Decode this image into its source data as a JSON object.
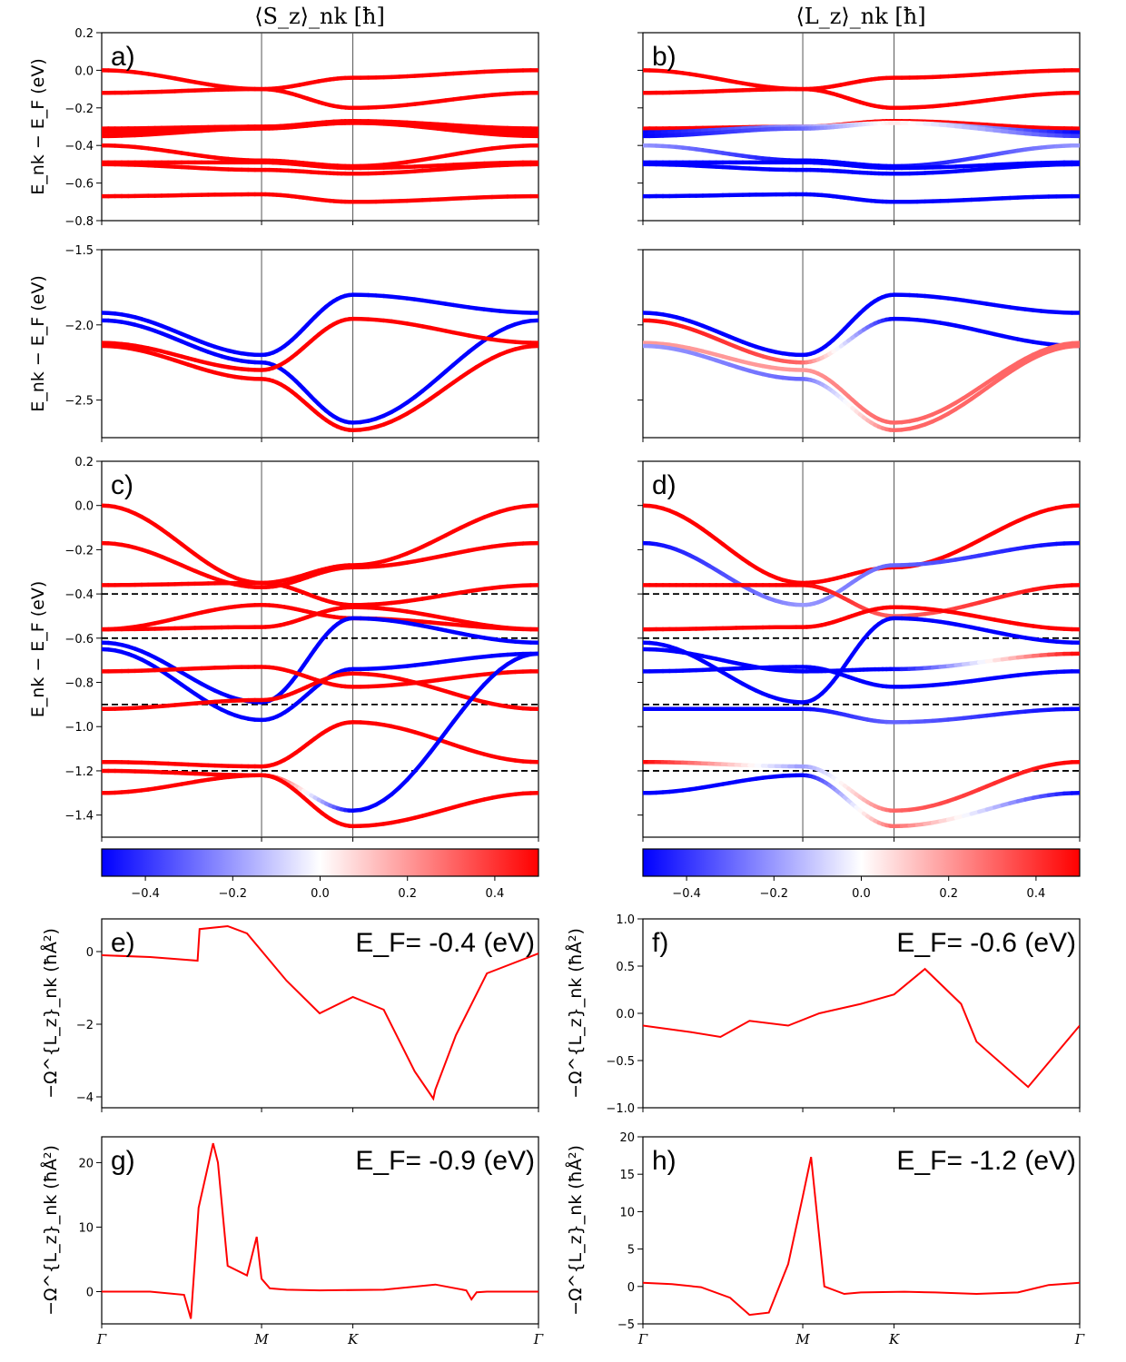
{
  "column_titles": [
    "⟨S_z⟩_nk [ħ]",
    "⟨L_z⟩_nk [ħ]"
  ],
  "band_ylabel": "E_nk − E_F (eV)",
  "berry_ylabel": "−Ω^{L_z}_nk (ħÅ²)",
  "kpath_labels": [
    "Γ",
    "M",
    "K",
    "Γ"
  ],
  "colorbar": {
    "min": -0.5,
    "max": 0.5,
    "ticks": [
      -0.4,
      -0.2,
      0.0,
      0.2,
      0.4
    ],
    "tick_labels": [
      "−0.4",
      "−0.2",
      "0.0",
      "0.2",
      "0.4"
    ],
    "low_color": "#0000ff",
    "mid_color": "#ffffff",
    "high_color": "#ff0000"
  },
  "colors": {
    "line": "#ff0000",
    "spin_up": "#ff0000",
    "spin_down": "#0000ff",
    "fermi_dash": "#000000"
  },
  "chart_data": [
    {
      "id": "a",
      "type": "line",
      "panel_label": "a)",
      "ylim": [
        -0.8,
        0.2
      ],
      "yticks": [
        -0.8,
        -0.6,
        -0.4,
        -0.2,
        0.0,
        0.2
      ],
      "ytick_labels": [
        "−0.8",
        "−0.6",
        "−0.4",
        "−0.2",
        "0.0",
        "0.2"
      ],
      "x": [
        0,
        1,
        2,
        3
      ],
      "series": [
        {
          "values": [
            0.0,
            -0.1,
            -0.04,
            0.0
          ],
          "z": [
            0.5,
            0.5,
            0.5,
            0.5
          ]
        },
        {
          "values": [
            -0.12,
            -0.1,
            -0.2,
            -0.12
          ],
          "z": [
            0.5,
            0.5,
            0.5,
            0.5
          ]
        },
        {
          "values": [
            -0.31,
            -0.3,
            -0.27,
            -0.31
          ],
          "z": [
            0.5,
            0.5,
            0.5,
            0.5
          ]
        },
        {
          "values": [
            -0.33,
            -0.3,
            -0.28,
            -0.33
          ],
          "z": [
            0.5,
            0.5,
            0.5,
            0.5
          ]
        },
        {
          "values": [
            -0.35,
            -0.31,
            -0.28,
            -0.35
          ],
          "z": [
            0.5,
            0.5,
            0.5,
            0.5
          ]
        },
        {
          "values": [
            -0.4,
            -0.48,
            -0.51,
            -0.4
          ],
          "z": [
            0.5,
            0.5,
            0.5,
            0.5
          ]
        },
        {
          "values": [
            -0.49,
            -0.49,
            -0.52,
            -0.49
          ],
          "z": [
            0.5,
            0.5,
            0.5,
            0.5
          ]
        },
        {
          "values": [
            -0.5,
            -0.53,
            -0.55,
            -0.5
          ],
          "z": [
            0.5,
            0.5,
            0.5,
            0.5
          ]
        },
        {
          "values": [
            -0.67,
            -0.66,
            -0.7,
            -0.67
          ],
          "z": [
            0.5,
            0.5,
            0.5,
            0.5
          ]
        }
      ]
    },
    {
      "id": "b",
      "type": "line",
      "panel_label": "b)",
      "ylim": [
        -0.8,
        0.2
      ],
      "yticks": [
        -0.8,
        -0.6,
        -0.4,
        -0.2,
        0.0,
        0.2
      ],
      "ytick_labels": [
        "",
        "",
        "",
        "",
        "",
        ""
      ],
      "x": [
        0,
        1,
        2,
        3
      ],
      "series": [
        {
          "values": [
            0.0,
            -0.1,
            -0.04,
            0.0
          ],
          "z": [
            0.5,
            0.5,
            0.5,
            0.5
          ]
        },
        {
          "values": [
            -0.12,
            -0.1,
            -0.2,
            -0.12
          ],
          "z": [
            0.5,
            0.5,
            0.5,
            0.5
          ]
        },
        {
          "values": [
            -0.31,
            -0.3,
            -0.27,
            -0.31
          ],
          "z": [
            0.5,
            0.5,
            0.5,
            0.5
          ]
        },
        {
          "values": [
            -0.33,
            -0.3,
            -0.28,
            -0.33
          ],
          "z": [
            -0.5,
            -0.2,
            0.05,
            -0.5
          ]
        },
        {
          "values": [
            -0.35,
            -0.31,
            -0.28,
            -0.35
          ],
          "z": [
            -0.5,
            -0.3,
            0.05,
            -0.4
          ]
        },
        {
          "values": [
            -0.4,
            -0.48,
            -0.51,
            -0.4
          ],
          "z": [
            -0.2,
            -0.5,
            -0.5,
            -0.2
          ]
        },
        {
          "values": [
            -0.49,
            -0.49,
            -0.52,
            -0.49
          ],
          "z": [
            -0.5,
            -0.5,
            -0.5,
            -0.5
          ]
        },
        {
          "values": [
            -0.5,
            -0.53,
            -0.55,
            -0.5
          ],
          "z": [
            -0.5,
            -0.5,
            -0.5,
            -0.5
          ]
        },
        {
          "values": [
            -0.67,
            -0.66,
            -0.7,
            -0.67
          ],
          "z": [
            -0.5,
            -0.5,
            -0.5,
            -0.5
          ]
        }
      ]
    },
    {
      "id": "a2",
      "type": "line",
      "panel_label": "",
      "ylim": [
        -2.75,
        -1.5
      ],
      "yticks": [
        -1.5,
        -2.0,
        -2.5
      ],
      "ytick_labels": [
        "−1.5",
        "−2.0",
        "−2.5"
      ],
      "x": [
        0,
        1,
        2,
        3
      ],
      "series": [
        {
          "values": [
            -1.92,
            -2.2,
            -1.8,
            -1.92
          ],
          "z": [
            -0.5,
            -0.5,
            -0.5,
            -0.5
          ]
        },
        {
          "values": [
            -1.97,
            -2.25,
            -2.65,
            -1.97
          ],
          "z": [
            -0.5,
            -0.5,
            -0.5,
            -0.5
          ]
        },
        {
          "values": [
            -2.12,
            -2.3,
            -1.96,
            -2.12
          ],
          "z": [
            0.5,
            0.5,
            0.5,
            0.5
          ]
        },
        {
          "values": [
            -2.14,
            -2.36,
            -2.7,
            -2.14
          ],
          "z": [
            0.5,
            0.5,
            0.5,
            0.5
          ]
        }
      ]
    },
    {
      "id": "b2",
      "type": "line",
      "panel_label": "",
      "ylim": [
        -2.75,
        -1.5
      ],
      "yticks": [
        -1.5,
        -2.0,
        -2.5
      ],
      "ytick_labels": [
        "",
        "",
        ""
      ],
      "x": [
        0,
        1,
        2,
        3
      ],
      "series": [
        {
          "values": [
            -1.92,
            -2.2,
            -1.8,
            -1.92
          ],
          "z": [
            -0.5,
            -0.5,
            -0.5,
            -0.5
          ]
        },
        {
          "values": [
            -1.97,
            -2.25,
            -1.96,
            -2.14
          ],
          "z": [
            0.5,
            0.3,
            -0.5,
            -0.5
          ]
        },
        {
          "values": [
            -2.12,
            -2.3,
            -2.65,
            -2.12
          ],
          "z": [
            0.2,
            0.2,
            0.3,
            0.3
          ]
        },
        {
          "values": [
            -2.14,
            -2.36,
            -2.7,
            -2.14
          ],
          "z": [
            -0.2,
            -0.3,
            0.3,
            0.3
          ]
        }
      ]
    },
    {
      "id": "c",
      "type": "line",
      "panel_label": "c)",
      "ylim": [
        -1.5,
        0.2
      ],
      "yticks": [
        -1.4,
        -1.2,
        -1.0,
        -0.8,
        -0.6,
        -0.4,
        -0.2,
        0.0,
        0.2
      ],
      "ytick_labels": [
        "−1.4",
        "−1.2",
        "−1.0",
        "−0.8",
        "−0.6",
        "−0.4",
        "−0.2",
        "0.0",
        "0.2"
      ],
      "hlines": [
        -0.4,
        -0.6,
        -0.9,
        -1.2
      ],
      "x": [
        0,
        1,
        2,
        3
      ],
      "series": [
        {
          "values": [
            0.0,
            -0.35,
            -0.27,
            0.0
          ],
          "z": [
            0.5,
            0.5,
            0.5,
            0.5
          ]
        },
        {
          "values": [
            -0.17,
            -0.37,
            -0.28,
            -0.17
          ],
          "z": [
            0.5,
            0.5,
            0.5,
            0.5
          ]
        },
        {
          "values": [
            -0.36,
            -0.35,
            -0.45,
            -0.36
          ],
          "z": [
            0.5,
            0.5,
            0.5,
            0.5
          ]
        },
        {
          "values": [
            -0.56,
            -0.45,
            -0.51,
            -0.56
          ],
          "z": [
            0.5,
            0.5,
            0.5,
            0.5
          ]
        },
        {
          "values": [
            -0.56,
            -0.55,
            -0.46,
            -0.56
          ],
          "z": [
            0.5,
            0.5,
            0.5,
            0.5
          ]
        },
        {
          "values": [
            -0.62,
            -0.89,
            -0.51,
            -0.62
          ],
          "z": [
            -0.5,
            -0.5,
            -0.5,
            -0.5
          ]
        },
        {
          "values": [
            -0.65,
            -0.97,
            -0.74,
            -0.67
          ],
          "z": [
            -0.5,
            -0.5,
            -0.5,
            -0.5
          ]
        },
        {
          "values": [
            -0.75,
            -0.73,
            -0.82,
            -0.75
          ],
          "z": [
            0.5,
            0.5,
            0.5,
            0.5
          ]
        },
        {
          "values": [
            -0.92,
            -0.88,
            -0.76,
            -0.92
          ],
          "z": [
            0.5,
            0.5,
            0.5,
            0.5
          ]
        },
        {
          "values": [
            -1.16,
            -1.18,
            -0.98,
            -1.16
          ],
          "z": [
            0.5,
            0.5,
            0.5,
            0.5
          ]
        },
        {
          "values": [
            -1.2,
            -1.22,
            -1.38,
            -0.67
          ],
          "z": [
            0.5,
            0.5,
            -0.5,
            -0.5
          ]
        },
        {
          "values": [
            -1.3,
            -1.22,
            -1.45,
            -1.3
          ],
          "z": [
            0.5,
            0.5,
            0.5,
            0.5
          ]
        }
      ]
    },
    {
      "id": "d",
      "type": "line",
      "panel_label": "d)",
      "ylim": [
        -1.5,
        0.2
      ],
      "yticks": [
        -1.4,
        -1.2,
        -1.0,
        -0.8,
        -0.6,
        -0.4,
        -0.2,
        0.0,
        0.2
      ],
      "ytick_labels": [
        "",
        "",
        "",
        "",
        "",
        "",
        "",
        "",
        ""
      ],
      "hlines": [
        -0.4,
        -0.6,
        -0.9,
        -1.2
      ],
      "x": [
        0,
        1,
        2,
        3
      ],
      "series": [
        {
          "values": [
            0.0,
            -0.35,
            -0.28,
            0.0
          ],
          "z": [
            0.5,
            0.5,
            0.5,
            0.5
          ]
        },
        {
          "values": [
            -0.17,
            -0.45,
            -0.27,
            -0.17
          ],
          "z": [
            -0.5,
            -0.2,
            -0.3,
            -0.5
          ]
        },
        {
          "values": [
            -0.36,
            -0.36,
            -0.5,
            -0.36
          ],
          "z": [
            0.5,
            0.5,
            0.3,
            0.5
          ]
        },
        {
          "values": [
            -0.56,
            -0.55,
            -0.46,
            -0.56
          ],
          "z": [
            0.5,
            0.5,
            0.5,
            0.5
          ]
        },
        {
          "values": [
            -0.62,
            -0.89,
            -0.51,
            -0.62
          ],
          "z": [
            -0.5,
            -0.5,
            -0.5,
            -0.5
          ]
        },
        {
          "values": [
            -0.65,
            -0.75,
            -0.74,
            -0.67
          ],
          "z": [
            -0.5,
            -0.5,
            -0.5,
            0.5
          ]
        },
        {
          "values": [
            -0.75,
            -0.73,
            -0.82,
            -0.75
          ],
          "z": [
            -0.5,
            -0.5,
            -0.5,
            -0.5
          ]
        },
        {
          "values": [
            -0.92,
            -0.92,
            -0.98,
            -0.92
          ],
          "z": [
            -0.5,
            -0.5,
            -0.3,
            -0.5
          ]
        },
        {
          "values": [
            -1.16,
            -1.18,
            -1.38,
            -1.16
          ],
          "z": [
            0.5,
            -0.2,
            0.3,
            0.5
          ]
        },
        {
          "values": [
            -1.3,
            -1.22,
            -1.45,
            -1.3
          ],
          "z": [
            -0.5,
            -0.5,
            0.3,
            -0.5
          ]
        }
      ]
    },
    {
      "id": "e",
      "type": "line",
      "panel_label": "e)",
      "annotation": "E_F= -0.4 (eV)",
      "ylim": [
        -4.3,
        0.9
      ],
      "yticks": [
        0,
        -2,
        -4
      ],
      "ytick_labels": [
        "0",
        "−2",
        "−4"
      ],
      "x": [
        0,
        0.5,
        0.99,
        1.01,
        1.3,
        1.5,
        1.8,
        2.0,
        2.2,
        2.5,
        2.8,
        2.98,
        3.0,
        3.2,
        3.5,
        4.0
      ],
      "series": [
        {
          "values": [
            -0.1,
            -0.15,
            -0.25,
            0.62,
            0.7,
            0.5,
            -0.8,
            -1.7,
            -1.25,
            -1.6,
            -3.3,
            -4.05,
            -3.8,
            -2.3,
            -0.6,
            -0.05
          ]
        }
      ]
    },
    {
      "id": "f",
      "type": "line",
      "panel_label": "f)",
      "annotation": "E_F= -0.6 (eV)",
      "ylim": [
        -1.0,
        1.0
      ],
      "yticks": [
        1.0,
        0.5,
        0.0,
        -0.5,
        -1.0
      ],
      "ytick_labels": [
        "1.0",
        "0.5",
        "0.0",
        "−0.5",
        "−1.0"
      ],
      "x": [
        0,
        0.5,
        0.8,
        1.1,
        1.5,
        1.75,
        1.8,
        2.0,
        2.2,
        2.5,
        2.85,
        3.0,
        3.5,
        4.0
      ],
      "series": [
        {
          "values": [
            -0.13,
            -0.2,
            -0.25,
            -0.08,
            -0.13,
            0.0,
            0.02,
            0.1,
            0.2,
            0.47,
            0.1,
            -0.3,
            -0.78,
            -0.13
          ]
        }
      ]
    },
    {
      "id": "g",
      "type": "line",
      "panel_label": "g)",
      "annotation": "E_F= -0.9 (eV)",
      "ylim": [
        -5,
        24
      ],
      "yticks": [
        20,
        10,
        0
      ],
      "ytick_labels": [
        "20",
        "10",
        "0"
      ],
      "x": [
        0,
        0.5,
        0.85,
        0.92,
        1.0,
        1.15,
        1.2,
        1.3,
        1.5,
        1.6,
        1.65,
        1.7,
        1.8,
        2.0,
        2.5,
        3.0,
        3.3,
        3.35,
        3.4,
        3.5,
        4.0
      ],
      "series": [
        {
          "values": [
            0.0,
            0.0,
            -0.5,
            -4.2,
            13,
            23,
            20,
            4,
            2.5,
            8.5,
            2,
            0.5,
            0.3,
            0.2,
            0.3,
            1.1,
            0.2,
            -1.2,
            -0.1,
            0,
            0
          ]
        }
      ]
    },
    {
      "id": "h",
      "type": "line",
      "panel_label": "h)",
      "annotation": "E_F= -1.2 (eV)",
      "ylim": [
        -5,
        20
      ],
      "yticks": [
        20,
        15,
        10,
        5,
        0,
        -5
      ],
      "ytick_labels": [
        "20",
        "15",
        "10",
        "5",
        "0",
        "−5"
      ],
      "x": [
        0,
        0.3,
        0.6,
        0.9,
        1.1,
        1.3,
        1.5,
        1.65,
        1.7,
        1.78,
        1.9,
        2.0,
        2.3,
        2.6,
        3.0,
        3.4,
        3.7,
        4.0
      ],
      "series": [
        {
          "values": [
            0.5,
            0.3,
            -0.1,
            -1.5,
            -3.8,
            -3.5,
            3,
            12,
            17.3,
            0,
            -1.0,
            -0.8,
            -0.7,
            -0.8,
            -1.0,
            -0.8,
            0.2,
            0.5
          ]
        }
      ]
    }
  ]
}
